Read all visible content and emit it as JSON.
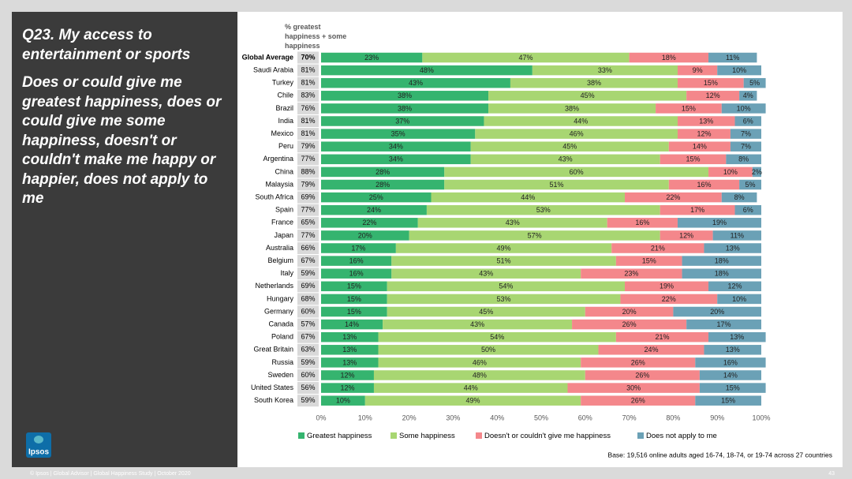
{
  "panel": {
    "title": "Q23. My access to entertainment or sports",
    "subtitle": "Does or could give me greatest happiness, does or could give me some happiness, doesn't or couldn't make me happy or happier, does not apply to me",
    "logo": "Ipsos"
  },
  "chart_data": {
    "type": "stacked-bar-horizontal",
    "categories": [
      "Global Average",
      "Saudi Arabia",
      "Turkey",
      "Chile",
      "Brazil",
      "India",
      "Mexico",
      "Peru",
      "Argentina",
      "China",
      "Malaysia",
      "South Africa",
      "Spain",
      "France",
      "Japan",
      "Australia",
      "Belgium",
      "Italy",
      "Netherlands",
      "Hungary",
      "Germany",
      "Canada",
      "Poland",
      "Great Britain",
      "Russia",
      "Sweden",
      "United States",
      "South Korea"
    ],
    "totals": {
      "header": "% greatest happiness + some happiness",
      "values": [
        70,
        81,
        81,
        83,
        76,
        81,
        81,
        79,
        77,
        88,
        79,
        69,
        77,
        65,
        77,
        66,
        67,
        59,
        69,
        68,
        60,
        57,
        67,
        63,
        59,
        60,
        56,
        59
      ],
      "value_labels": [
        "70%",
        "81%",
        "81%",
        "83%",
        "76%",
        "81%",
        "81%",
        "79%",
        "77%",
        "88%",
        "79%",
        "69%",
        "77%",
        "65%",
        "77%",
        "66%",
        "67%",
        "59%",
        "69%",
        "68%",
        "60%",
        "57%",
        "67%",
        "63%",
        "59%",
        "60%",
        "56%",
        "59%"
      ]
    },
    "series": [
      {
        "name": "Greatest happiness",
        "color": "#35b46f",
        "values": [
          23,
          48,
          43,
          38,
          38,
          37,
          35,
          34,
          34,
          28,
          28,
          25,
          24,
          22,
          20,
          17,
          16,
          16,
          15,
          15,
          15,
          14,
          13,
          13,
          13,
          12,
          12,
          10
        ],
        "value_labels": [
          "23%",
          "48%",
          "43%",
          "38%",
          "38%",
          "37%",
          "35%",
          "34%",
          "34%",
          "28%",
          "28%",
          "25%",
          "24%",
          "22%",
          "20%",
          "17%",
          "16%",
          "16%",
          "15%",
          "15%",
          "15%",
          "14%",
          "13%",
          "13%",
          "13%",
          "12%",
          "12%",
          "10%"
        ]
      },
      {
        "name": "Some happiness",
        "color": "#a8d672",
        "values": [
          47,
          33,
          38,
          45,
          38,
          44,
          46,
          45,
          43,
          60,
          51,
          44,
          53,
          43,
          57,
          49,
          51,
          43,
          54,
          53,
          45,
          43,
          54,
          50,
          46,
          48,
          44,
          49
        ],
        "value_labels": [
          "47%",
          "33%",
          "38%",
          "45%",
          "38%",
          "44%",
          "46%",
          "45%",
          "43%",
          "60%",
          "51%",
          "44%",
          "53%",
          "43%",
          "57%",
          "49%",
          "51%",
          "43%",
          "54%",
          "53%",
          "45%",
          "43%",
          "54%",
          "50%",
          "46%",
          "48%",
          "44%",
          "49%"
        ]
      },
      {
        "name": "Doesn't or couldn't give me happiness",
        "color": "#f4878b",
        "values": [
          18,
          9,
          15,
          12,
          15,
          13,
          12,
          14,
          15,
          10,
          16,
          22,
          17,
          16,
          12,
          21,
          15,
          23,
          19,
          22,
          20,
          26,
          21,
          24,
          26,
          26,
          30,
          26
        ],
        "value_labels": [
          "18%",
          "9%",
          "15%",
          "12%",
          "15%",
          "13%",
          "12%",
          "14%",
          "15%",
          "10%",
          "16%",
          "22%",
          "17%",
          "16%",
          "12%",
          "21%",
          "15%",
          "23%",
          "19%",
          "22%",
          "20%",
          "26%",
          "21%",
          "24%",
          "26%",
          "26%",
          "30%",
          "26%"
        ]
      },
      {
        "name": "Does not apply to me",
        "color": "#6ba1b6",
        "values": [
          11,
          10,
          5,
          4,
          10,
          6,
          7,
          7,
          8,
          2,
          5,
          8,
          6,
          19,
          11,
          13,
          18,
          18,
          12,
          10,
          20,
          17,
          13,
          13,
          16,
          14,
          15,
          15
        ],
        "value_labels": [
          "11%",
          "10%",
          "5%",
          "4%",
          "10%",
          "6%",
          "7%",
          "7%",
          "8%",
          "2%",
          "5%",
          "8%",
          "6%",
          "19%",
          "11%",
          "13%",
          "18%",
          "18%",
          "12%",
          "10%",
          "20%",
          "17%",
          "13%",
          "13%",
          "16%",
          "14%",
          "15%",
          "15%"
        ]
      }
    ],
    "xlim": [
      0,
      100
    ],
    "xticks": [
      {
        "value": 0,
        "label": "0%"
      },
      {
        "value": 10,
        "label": "10%"
      },
      {
        "value": 20,
        "label": "20%"
      },
      {
        "value": 30,
        "label": "30%"
      },
      {
        "value": 40,
        "label": "40%"
      },
      {
        "value": 50,
        "label": "50%"
      },
      {
        "value": 60,
        "label": "60%"
      },
      {
        "value": 70,
        "label": "70%"
      },
      {
        "value": 80,
        "label": "80%"
      },
      {
        "value": 90,
        "label": "90%"
      },
      {
        "value": 100,
        "label": "100%"
      }
    ],
    "legend": "bottom",
    "note": "Base: 19,516 online adults aged 16-74, 18-74, or 19-74 across 27 countries"
  },
  "footer": {
    "text": "© Ipsos | Global Advisor | Global Happiness Study | October 2020",
    "page": "43"
  }
}
